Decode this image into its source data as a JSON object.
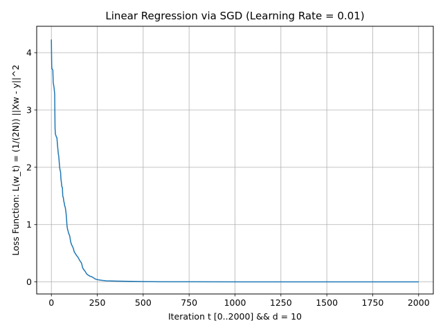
{
  "chart_data": {
    "type": "line",
    "title": "Linear Regression via SGD (Learning Rate = 0.01)",
    "xlabel": "Iteration t [0..2000] && d = 10",
    "ylabel": "Loss Function: L(w_t) = (1/(2N)) ||Xw - y||^2",
    "xlim": [
      -80,
      2080
    ],
    "ylim": [
      -0.21,
      4.46
    ],
    "x_ticks": [
      0,
      250,
      500,
      750,
      1000,
      1250,
      1500,
      1750,
      2000
    ],
    "y_ticks": [
      0,
      1,
      2,
      3,
      4
    ],
    "grid": true,
    "line_color": "#1f77b4",
    "series": [
      {
        "x": [
          0,
          1,
          2,
          3,
          5,
          8,
          10,
          12,
          15,
          18,
          20,
          22,
          25,
          27,
          30,
          33,
          35,
          38,
          40,
          43,
          45,
          48,
          50,
          52,
          55,
          57,
          60,
          62,
          65,
          68,
          70,
          73,
          75,
          78,
          80,
          83,
          85,
          88,
          90,
          93,
          95,
          98,
          100,
          103,
          105,
          110,
          115,
          120,
          125,
          130,
          135,
          140,
          145,
          150,
          155,
          160,
          165,
          170,
          175,
          180,
          185,
          190,
          195,
          200,
          210,
          220,
          230,
          240,
          250,
          260,
          270,
          280,
          300,
          320,
          350,
          400,
          450,
          500,
          600,
          750,
          1000,
          1250,
          1500,
          1750,
          2000
        ],
        "y": [
          4.23,
          3.95,
          3.76,
          3.72,
          3.71,
          3.7,
          3.48,
          3.44,
          3.38,
          3.28,
          2.68,
          2.58,
          2.55,
          2.53,
          2.52,
          2.4,
          2.33,
          2.23,
          2.2,
          2.08,
          2.0,
          1.94,
          1.92,
          1.8,
          1.72,
          1.66,
          1.65,
          1.5,
          1.47,
          1.4,
          1.38,
          1.32,
          1.31,
          1.25,
          1.2,
          1.08,
          0.98,
          0.92,
          0.9,
          0.86,
          0.84,
          0.82,
          0.8,
          0.74,
          0.7,
          0.65,
          0.62,
          0.58,
          0.52,
          0.5,
          0.47,
          0.45,
          0.43,
          0.4,
          0.37,
          0.35,
          0.32,
          0.25,
          0.22,
          0.2,
          0.18,
          0.15,
          0.13,
          0.12,
          0.1,
          0.09,
          0.07,
          0.05,
          0.04,
          0.035,
          0.03,
          0.025,
          0.02,
          0.018,
          0.015,
          0.012,
          0.008,
          0.005,
          0.003,
          0.002,
          0.001,
          0.001,
          0.001,
          0.001,
          0.001
        ]
      }
    ]
  }
}
